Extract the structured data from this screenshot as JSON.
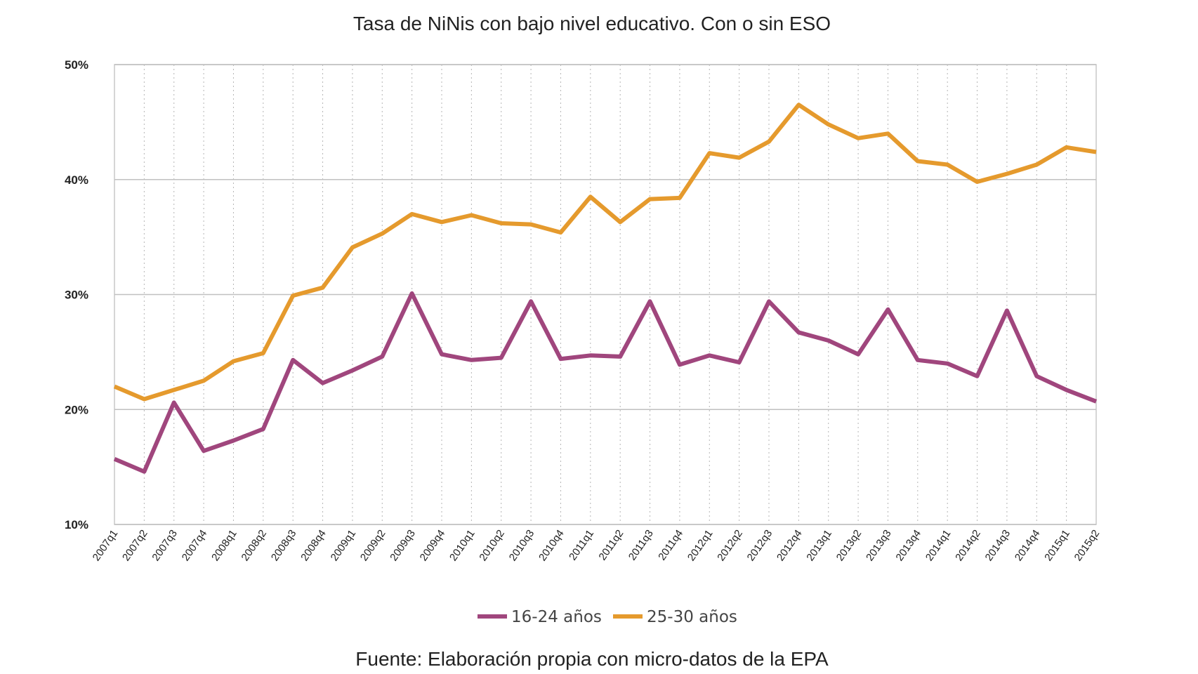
{
  "chart_data": {
    "type": "line",
    "title": "Tasa de NiNis con bajo nivel educativo. Con o sin ESO",
    "source": "Fuente: Elaboración propia con micro-datos de la EPA",
    "xlabel": "",
    "ylabel": "",
    "ylim": [
      10,
      50
    ],
    "yticks": [
      10,
      20,
      30,
      40,
      50
    ],
    "ytick_labels": [
      "10%",
      "20%",
      "30%",
      "40%",
      "50%"
    ],
    "grid": {
      "horizontal": "solid",
      "vertical": "dotted"
    },
    "legend_position": "bottom",
    "categories": [
      "2007q1",
      "2007q2",
      "2007q3",
      "2007q4",
      "2008q1",
      "2008q2",
      "2008q3",
      "2008q4",
      "2009q1",
      "2009q2",
      "2009q3",
      "2009q4",
      "2010q1",
      "2010q2",
      "2010q3",
      "2010q4",
      "2011q1",
      "2011q2",
      "2011q3",
      "2011q4",
      "2012q1",
      "2012q2",
      "2012q3",
      "2012q4",
      "2013q1",
      "2013q2",
      "2013q3",
      "2013q4",
      "2014q1",
      "2014q2",
      "2014q3",
      "2014q4",
      "2015q1",
      "2015q2"
    ],
    "series": [
      {
        "name": "16-24 años",
        "color": "#a0467d",
        "values": [
          15.7,
          14.6,
          20.6,
          16.4,
          17.3,
          18.3,
          24.3,
          22.3,
          23.4,
          24.6,
          30.1,
          24.8,
          24.3,
          24.5,
          29.4,
          24.4,
          24.7,
          24.6,
          29.4,
          23.9,
          24.7,
          24.1,
          29.4,
          26.7,
          26.0,
          24.8,
          28.7,
          24.3,
          24.0,
          22.9,
          28.6,
          22.9,
          21.7,
          20.7
        ]
      },
      {
        "name": "25-30 años",
        "color": "#e59a2d",
        "values": [
          22.0,
          20.9,
          21.7,
          22.5,
          24.2,
          24.9,
          29.9,
          30.6,
          34.1,
          35.3,
          37.0,
          36.3,
          36.9,
          36.2,
          36.1,
          35.4,
          38.5,
          36.3,
          38.3,
          38.4,
          42.3,
          41.9,
          43.3,
          46.5,
          44.8,
          43.6,
          44.0,
          41.6,
          41.3,
          39.8,
          40.5,
          41.3,
          42.8,
          42.4
        ]
      }
    ]
  }
}
